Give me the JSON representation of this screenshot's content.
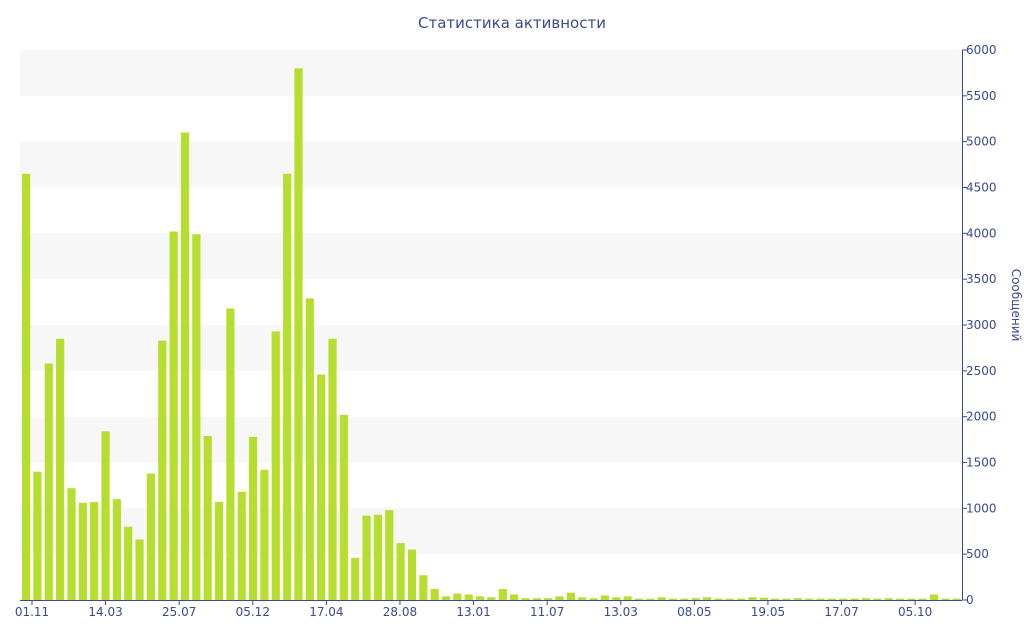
{
  "chart_data": {
    "type": "bar",
    "title": "Статистика активности",
    "xlabel": "",
    "ylabel": "Сообщений",
    "ylim": [
      0,
      6000
    ],
    "yticks": [
      0,
      500,
      1000,
      1500,
      2000,
      2500,
      3000,
      3500,
      4000,
      4500,
      5000,
      5500,
      6000
    ],
    "y_axis_position": "right",
    "grid": "alternating horizontal bands",
    "legend": "none",
    "bar_color": "#b5de2e",
    "band_color": "#f7f7f7",
    "text_color": "#3a4a8c",
    "x_tick_labels": [
      "01.11",
      "14.03",
      "25.07",
      "05.12",
      "17.04",
      "28.08",
      "13.01",
      "11.07",
      "13.03",
      "08.05",
      "19.05",
      "17.07",
      "05.10"
    ],
    "values": [
      4650,
      1400,
      2580,
      2850,
      1220,
      1060,
      1070,
      1840,
      1100,
      800,
      660,
      1380,
      2830,
      4020,
      5100,
      3990,
      1790,
      1070,
      3180,
      1180,
      1780,
      1420,
      2930,
      4650,
      5800,
      3290,
      2460,
      2850,
      2020,
      460,
      920,
      930,
      980,
      620,
      550,
      270,
      120,
      40,
      70,
      60,
      40,
      30,
      120,
      60,
      20,
      20,
      20,
      40,
      80,
      30,
      20,
      50,
      30,
      40,
      15,
      15,
      30,
      15,
      15,
      20,
      30,
      15,
      15,
      15,
      30,
      25,
      15,
      15,
      20,
      15,
      15,
      15,
      15,
      15,
      20,
      15,
      20,
      15,
      15,
      15,
      60,
      15,
      15
    ]
  }
}
